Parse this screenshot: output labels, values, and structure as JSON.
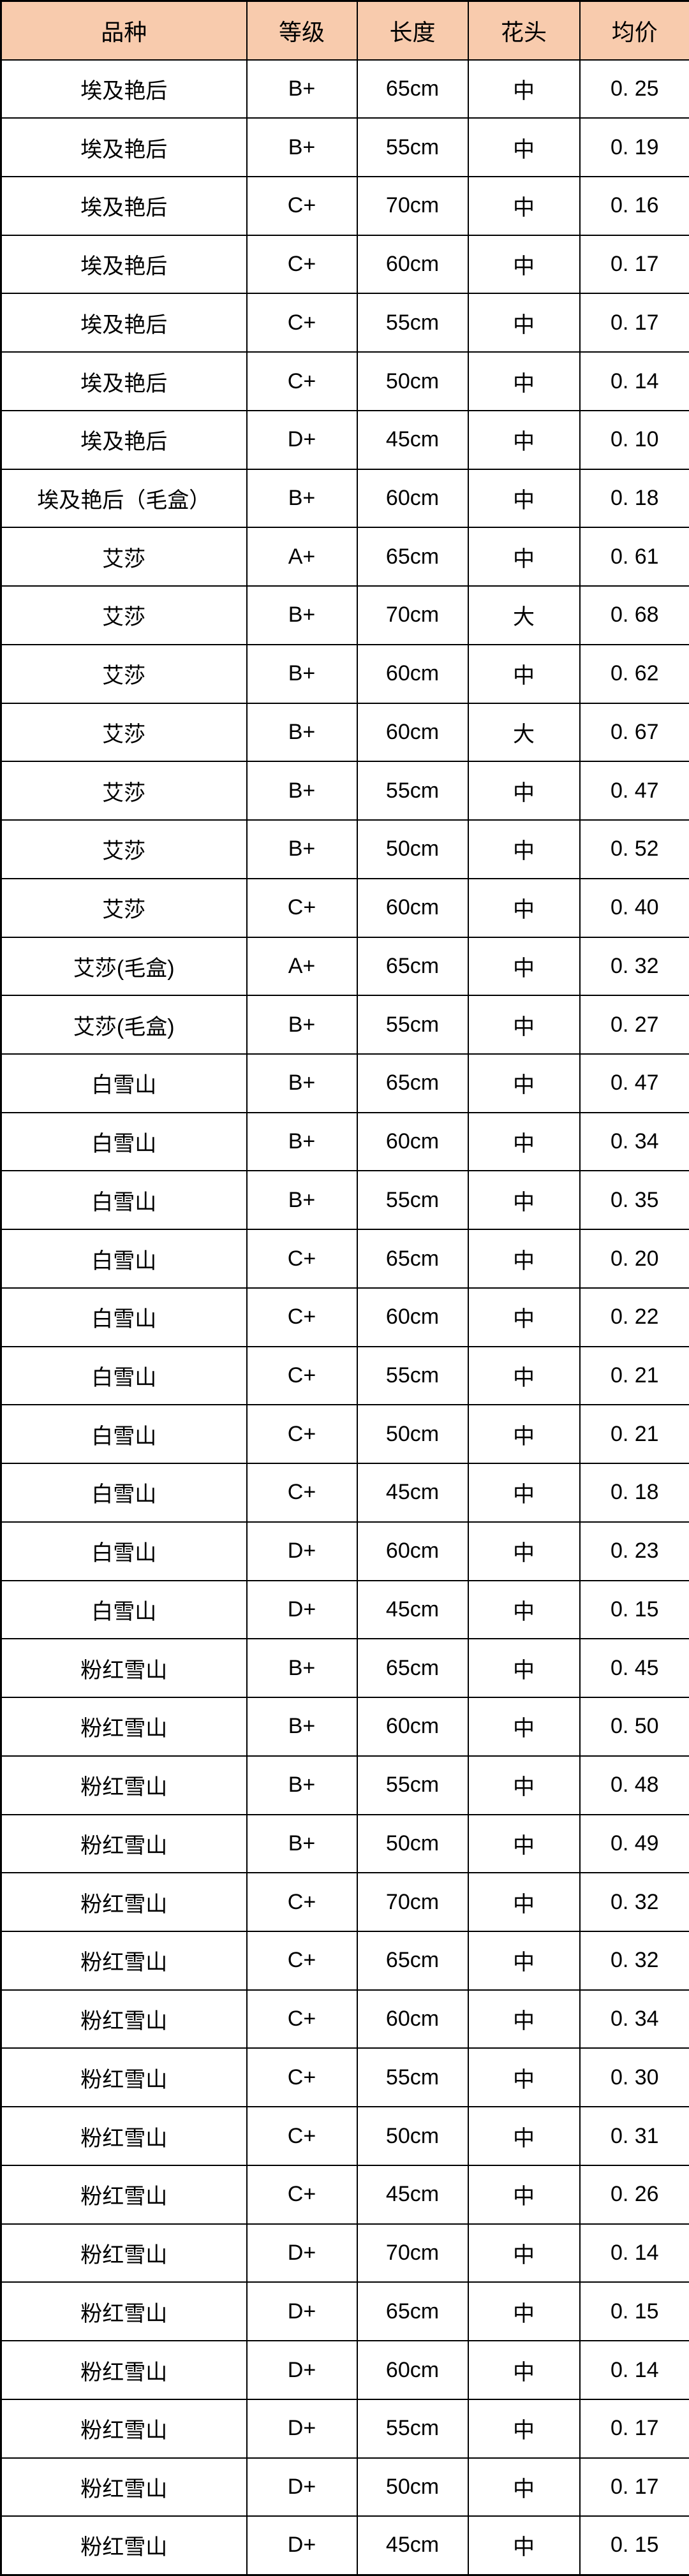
{
  "colors": {
    "header_bg": "#F8CBAD",
    "border": "#000000",
    "cell_bg": "#FFFFFF",
    "text": "#000000"
  },
  "table": {
    "columns": [
      {
        "id": "variety",
        "label": "品种"
      },
      {
        "id": "grade",
        "label": "等级"
      },
      {
        "id": "length",
        "label": "长度"
      },
      {
        "id": "flower-head",
        "label": "花头"
      },
      {
        "id": "avg-price",
        "label": "均价"
      }
    ],
    "rows": [
      [
        "埃及艳后",
        "B+",
        "65cm",
        "中",
        "0. 25"
      ],
      [
        "埃及艳后",
        "B+",
        "55cm",
        "中",
        "0. 19"
      ],
      [
        "埃及艳后",
        "C+",
        "70cm",
        "中",
        "0. 16"
      ],
      [
        "埃及艳后",
        "C+",
        "60cm",
        "中",
        "0. 17"
      ],
      [
        "埃及艳后",
        "C+",
        "55cm",
        "中",
        "0. 17"
      ],
      [
        "埃及艳后",
        "C+",
        "50cm",
        "中",
        "0. 14"
      ],
      [
        "埃及艳后",
        "D+",
        "45cm",
        "中",
        "0. 10"
      ],
      [
        "埃及艳后（毛盒）",
        "B+",
        "60cm",
        "中",
        "0. 18"
      ],
      [
        "艾莎",
        "A+",
        "65cm",
        "中",
        "0. 61"
      ],
      [
        "艾莎",
        "B+",
        "70cm",
        "大",
        "0. 68"
      ],
      [
        "艾莎",
        "B+",
        "60cm",
        "中",
        "0. 62"
      ],
      [
        "艾莎",
        "B+",
        "60cm",
        "大",
        "0. 67"
      ],
      [
        "艾莎",
        "B+",
        "55cm",
        "中",
        "0. 47"
      ],
      [
        "艾莎",
        "B+",
        "50cm",
        "中",
        "0. 52"
      ],
      [
        "艾莎",
        "C+",
        "60cm",
        "中",
        "0. 40"
      ],
      [
        "艾莎(毛盒)",
        "A+",
        "65cm",
        "中",
        "0. 32"
      ],
      [
        "艾莎(毛盒)",
        "B+",
        "55cm",
        "中",
        "0. 27"
      ],
      [
        "白雪山",
        "B+",
        "65cm",
        "中",
        "0. 47"
      ],
      [
        "白雪山",
        "B+",
        "60cm",
        "中",
        "0. 34"
      ],
      [
        "白雪山",
        "B+",
        "55cm",
        "中",
        "0. 35"
      ],
      [
        "白雪山",
        "C+",
        "65cm",
        "中",
        "0. 20"
      ],
      [
        "白雪山",
        "C+",
        "60cm",
        "中",
        "0. 22"
      ],
      [
        "白雪山",
        "C+",
        "55cm",
        "中",
        "0. 21"
      ],
      [
        "白雪山",
        "C+",
        "50cm",
        "中",
        "0. 21"
      ],
      [
        "白雪山",
        "C+",
        "45cm",
        "中",
        "0. 18"
      ],
      [
        "白雪山",
        "D+",
        "60cm",
        "中",
        "0. 23"
      ],
      [
        "白雪山",
        "D+",
        "45cm",
        "中",
        "0. 15"
      ],
      [
        "粉红雪山",
        "B+",
        "65cm",
        "中",
        "0. 45"
      ],
      [
        "粉红雪山",
        "B+",
        "60cm",
        "中",
        "0. 50"
      ],
      [
        "粉红雪山",
        "B+",
        "55cm",
        "中",
        "0. 48"
      ],
      [
        "粉红雪山",
        "B+",
        "50cm",
        "中",
        "0. 49"
      ],
      [
        "粉红雪山",
        "C+",
        "70cm",
        "中",
        "0. 32"
      ],
      [
        "粉红雪山",
        "C+",
        "65cm",
        "中",
        "0. 32"
      ],
      [
        "粉红雪山",
        "C+",
        "60cm",
        "中",
        "0. 34"
      ],
      [
        "粉红雪山",
        "C+",
        "55cm",
        "中",
        "0. 30"
      ],
      [
        "粉红雪山",
        "C+",
        "50cm",
        "中",
        "0. 31"
      ],
      [
        "粉红雪山",
        "C+",
        "45cm",
        "中",
        "0. 26"
      ],
      [
        "粉红雪山",
        "D+",
        "70cm",
        "中",
        "0. 14"
      ],
      [
        "粉红雪山",
        "D+",
        "65cm",
        "中",
        "0. 15"
      ],
      [
        "粉红雪山",
        "D+",
        "60cm",
        "中",
        "0. 14"
      ],
      [
        "粉红雪山",
        "D+",
        "55cm",
        "中",
        "0. 17"
      ],
      [
        "粉红雪山",
        "D+",
        "50cm",
        "中",
        "0. 17"
      ],
      [
        "粉红雪山",
        "D+",
        "45cm",
        "中",
        "0. 15"
      ]
    ]
  }
}
